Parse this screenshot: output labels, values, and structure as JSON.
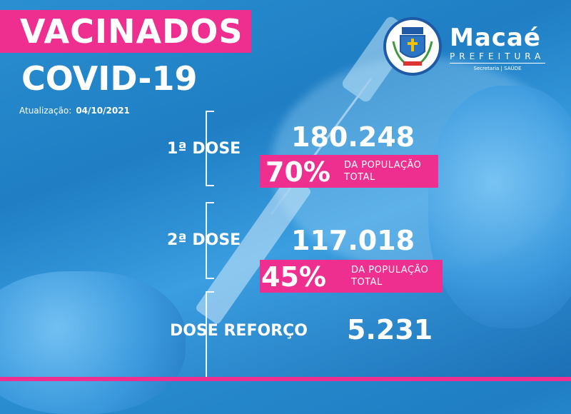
{
  "header": {
    "title_line1": "VACINADOS",
    "title_line2": "COVID-19",
    "update_label": "Atualização:",
    "update_date": "04/10/2021"
  },
  "logo": {
    "name": "Macaé",
    "subtitle": "PREFEITURA",
    "department": "Secretaria | SAÚDE"
  },
  "doses": [
    {
      "label": "1ª DOSE",
      "count": "180.248",
      "percent": "70%",
      "pop_line1": "DA POPULAÇÃO",
      "pop_line2": "TOTAL"
    },
    {
      "label": "2ª DOSE",
      "count": "117.018",
      "percent": "45%",
      "pop_line1": "DA POPULAÇÃO",
      "pop_line2": "TOTAL"
    },
    {
      "label": "DOSE REFORÇO",
      "count": "5.231"
    }
  ],
  "colors": {
    "accent": "#ee2f8f",
    "background": "#2a8fd0"
  }
}
